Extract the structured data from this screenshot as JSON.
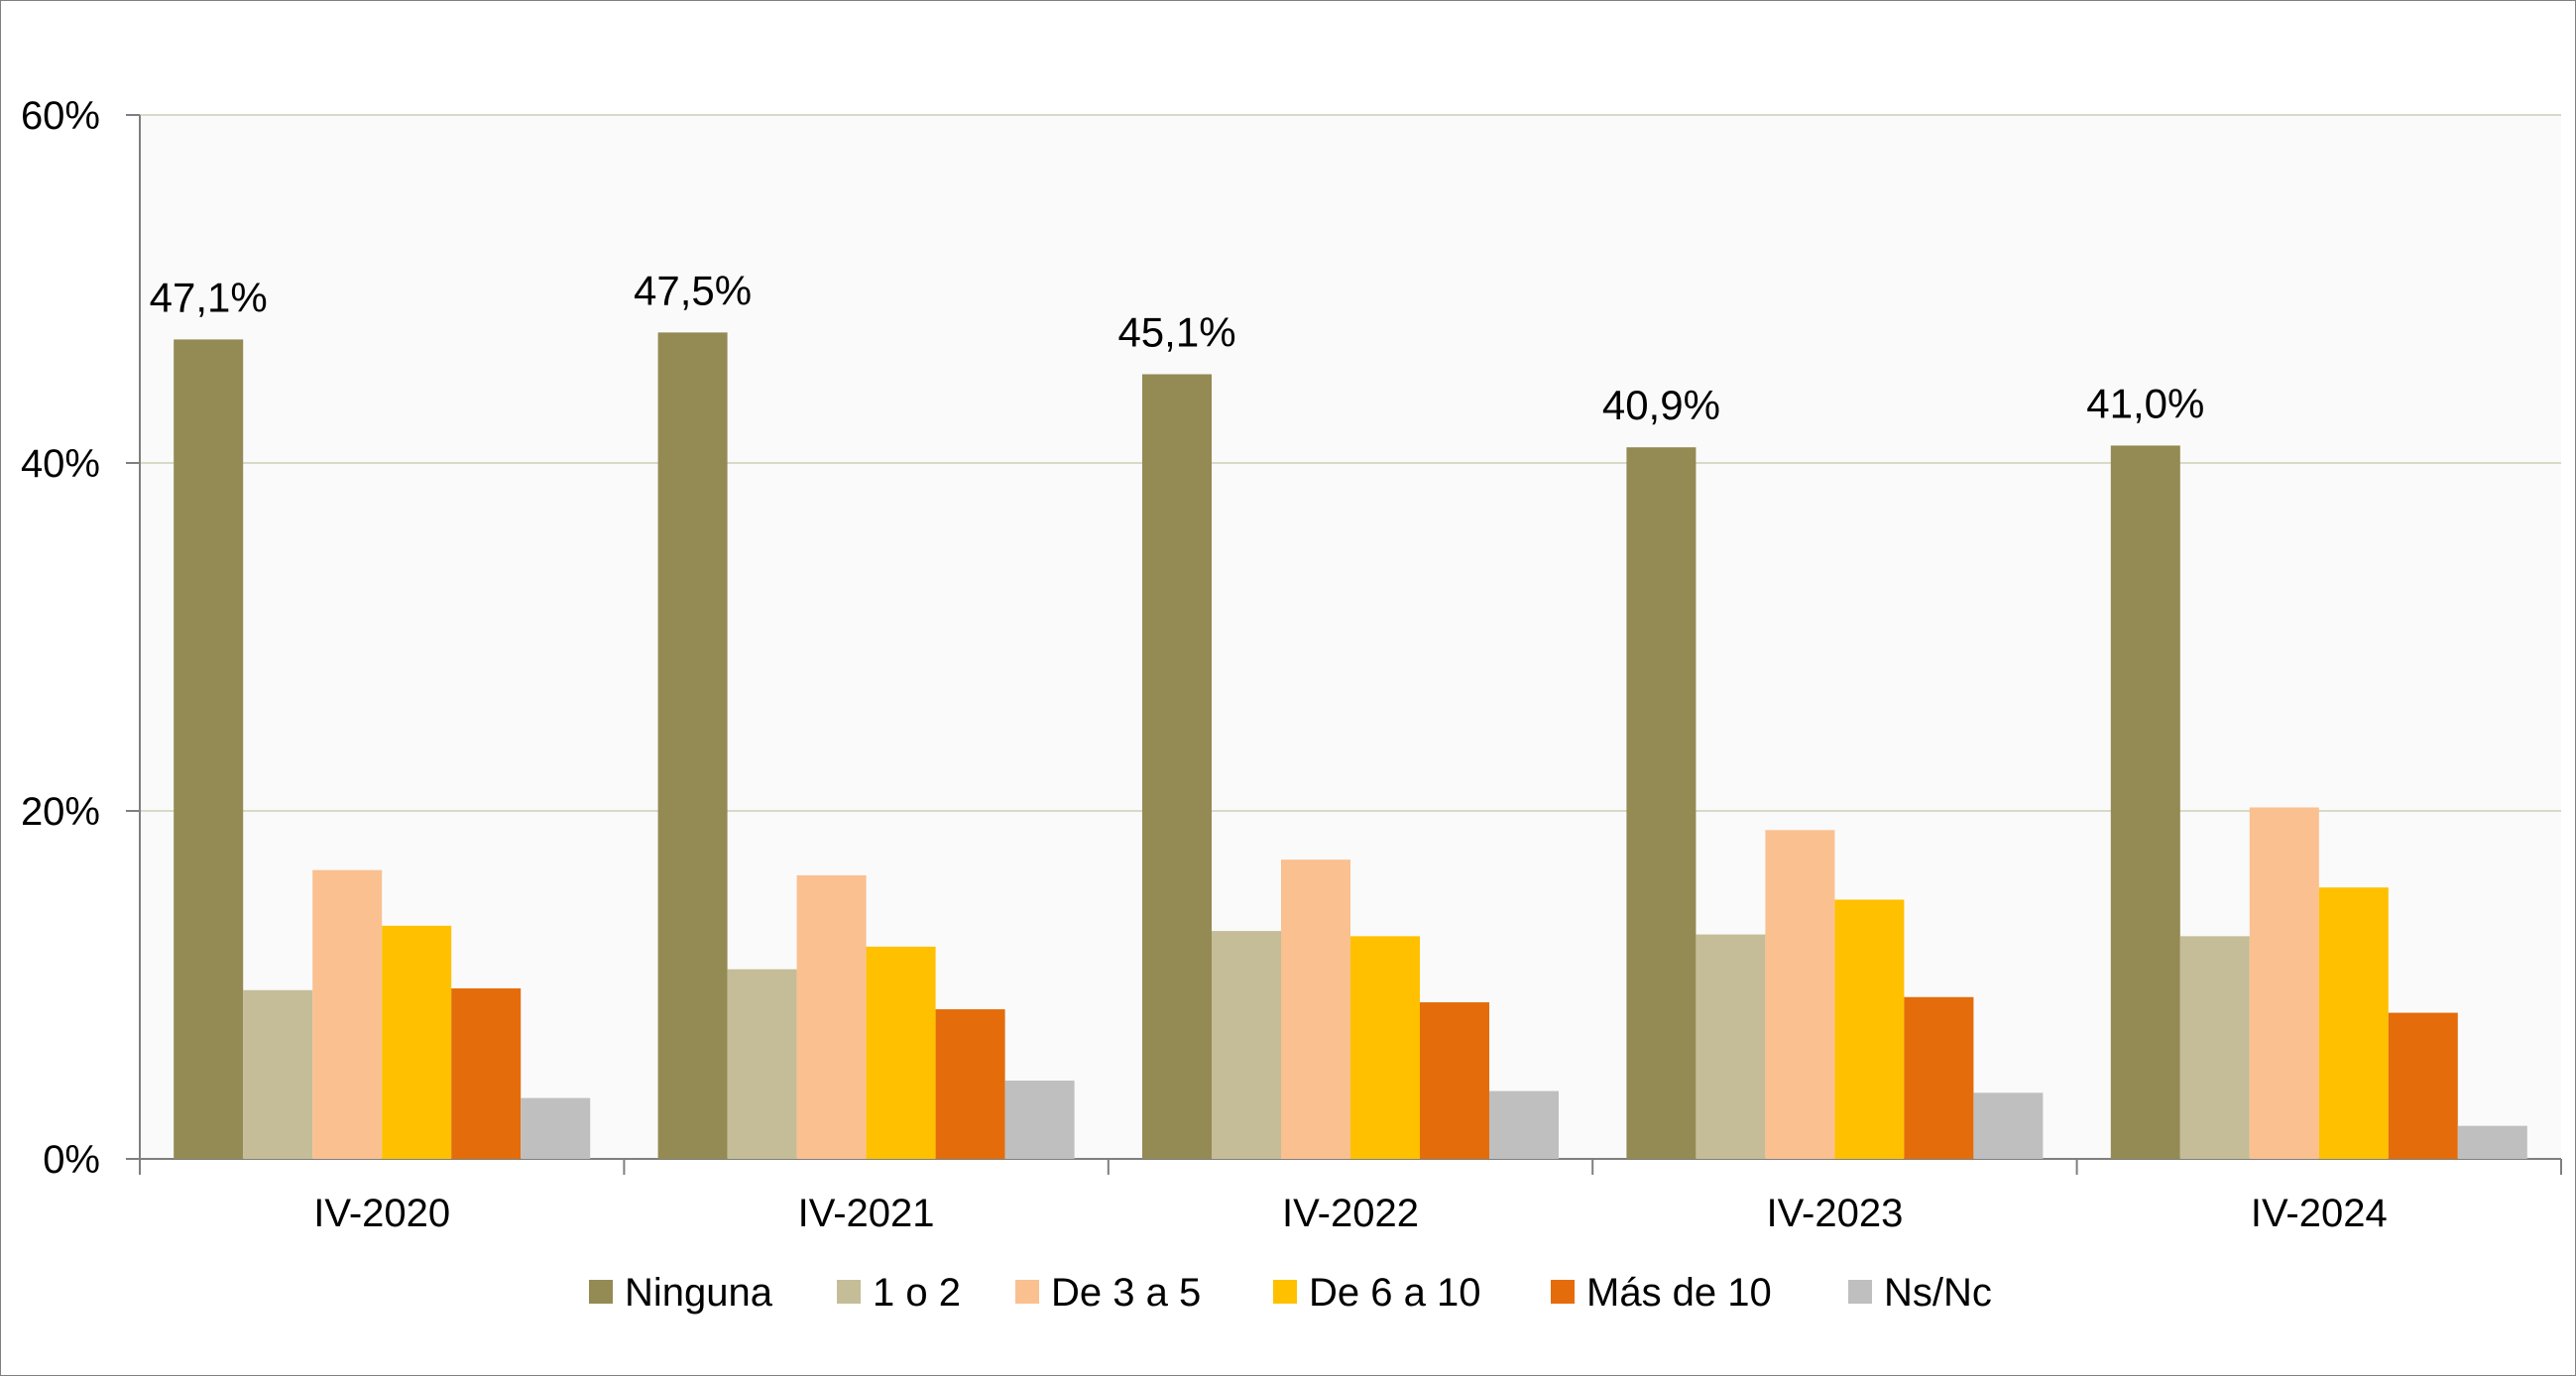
{
  "chart_data": {
    "type": "bar",
    "categories": [
      "IV-2020",
      "IV-2021",
      "IV-2022",
      "IV-2023",
      "IV-2024"
    ],
    "series": [
      {
        "name": "Ninguna",
        "color": "#948a54",
        "values": [
          47.1,
          47.5,
          45.1,
          40.9,
          41.0
        ],
        "labels": [
          "47,1%",
          "47,5%",
          "45,1%",
          "40,9%",
          "41,0%"
        ]
      },
      {
        "name": "1 o 2",
        "color": "#c4bd97",
        "values": [
          9.7,
          10.9,
          13.1,
          12.9,
          12.8
        ]
      },
      {
        "name": "De 3 a 5",
        "color": "#fac090",
        "values": [
          16.6,
          16.3,
          17.2,
          18.9,
          20.2
        ]
      },
      {
        "name": "De 6 a 10",
        "color": "#ffc000",
        "values": [
          13.4,
          12.2,
          12.8,
          14.9,
          15.6
        ]
      },
      {
        "name": "Más de 10",
        "color": "#e46c0a",
        "values": [
          9.8,
          8.6,
          9.0,
          9.3,
          8.4
        ]
      },
      {
        "name": "Ns/Nc",
        "color": "#bfbfbf",
        "values": [
          3.5,
          4.5,
          3.9,
          3.8,
          1.9
        ]
      }
    ],
    "yticks": [
      "0%",
      "20%",
      "40%",
      "60%"
    ],
    "ytick_values": [
      0,
      20,
      40,
      60
    ],
    "ylim": [
      0,
      60
    ],
    "xlabel": "",
    "ylabel": "",
    "title": "",
    "grid": true,
    "legend_position": "bottom",
    "plot_background": "#fafafa",
    "grid_color": "#d9d9c8"
  }
}
